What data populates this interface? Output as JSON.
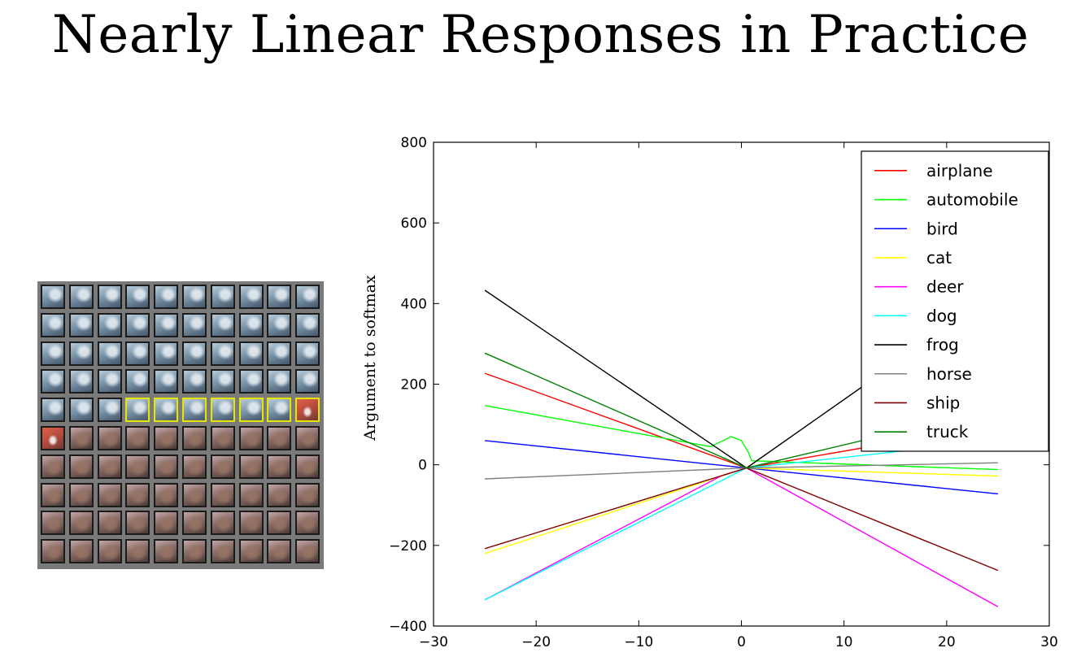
{
  "page": {
    "title": "Nearly Linear Responses in Practice"
  },
  "image_grid": {
    "rows": 10,
    "cols": 10,
    "top_class": "bird",
    "bottom_class": "horse",
    "highlighted_row": 4,
    "highlighted_cols": [
      3,
      4,
      5,
      6,
      7,
      8,
      9
    ],
    "highlight_color": "#e6e600"
  },
  "chart_data": {
    "type": "line",
    "title": "",
    "xlabel": "",
    "ylabel": "Argument to softmax",
    "xlim": [
      -30,
      30
    ],
    "ylim": [
      -400,
      800
    ],
    "xticks": [
      -30,
      -20,
      -10,
      0,
      10,
      20,
      30
    ],
    "yticks": [
      -400,
      -200,
      0,
      200,
      400,
      600,
      800
    ],
    "grid": false,
    "legend_position": "top-right",
    "series": [
      {
        "name": "airplane",
        "color": "#ff0000",
        "x": [
          -25,
          0.5,
          25
        ],
        "y": [
          227,
          -8,
          100
        ]
      },
      {
        "name": "automobile",
        "color": "#00ff00",
        "x": [
          -25,
          -3,
          -1,
          0,
          0.7,
          1,
          25
        ],
        "y": [
          147,
          45,
          70,
          60,
          30,
          10,
          -12
        ]
      },
      {
        "name": "bird",
        "color": "#0000ff",
        "x": [
          -25,
          0.5,
          25
        ],
        "y": [
          60,
          -8,
          -72
        ]
      },
      {
        "name": "cat",
        "color": "#ffff00",
        "x": [
          -25,
          0.5,
          25
        ],
        "y": [
          -220,
          -8,
          -28
        ]
      },
      {
        "name": "deer",
        "color": "#ff00ff",
        "x": [
          -25,
          -2,
          0.5,
          25
        ],
        "y": [
          -335,
          -28,
          -8,
          -352
        ]
      },
      {
        "name": "dog",
        "color": "#00ffff",
        "x": [
          -25,
          0.5,
          25
        ],
        "y": [
          -335,
          -8,
          60
        ]
      },
      {
        "name": "frog",
        "color": "#000000",
        "x": [
          -25,
          0.5,
          25
        ],
        "y": [
          433,
          -8,
          430
        ]
      },
      {
        "name": "horse",
        "color": "#808080",
        "x": [
          -25,
          0.5,
          25
        ],
        "y": [
          -35,
          -8,
          5
        ]
      },
      {
        "name": "ship",
        "color": "#800000",
        "x": [
          -25,
          0.5,
          25
        ],
        "y": [
          -208,
          -8,
          -262
        ]
      },
      {
        "name": "truck",
        "color": "#008000",
        "x": [
          -25,
          0.5,
          25
        ],
        "y": [
          277,
          -8,
          140
        ]
      }
    ]
  }
}
